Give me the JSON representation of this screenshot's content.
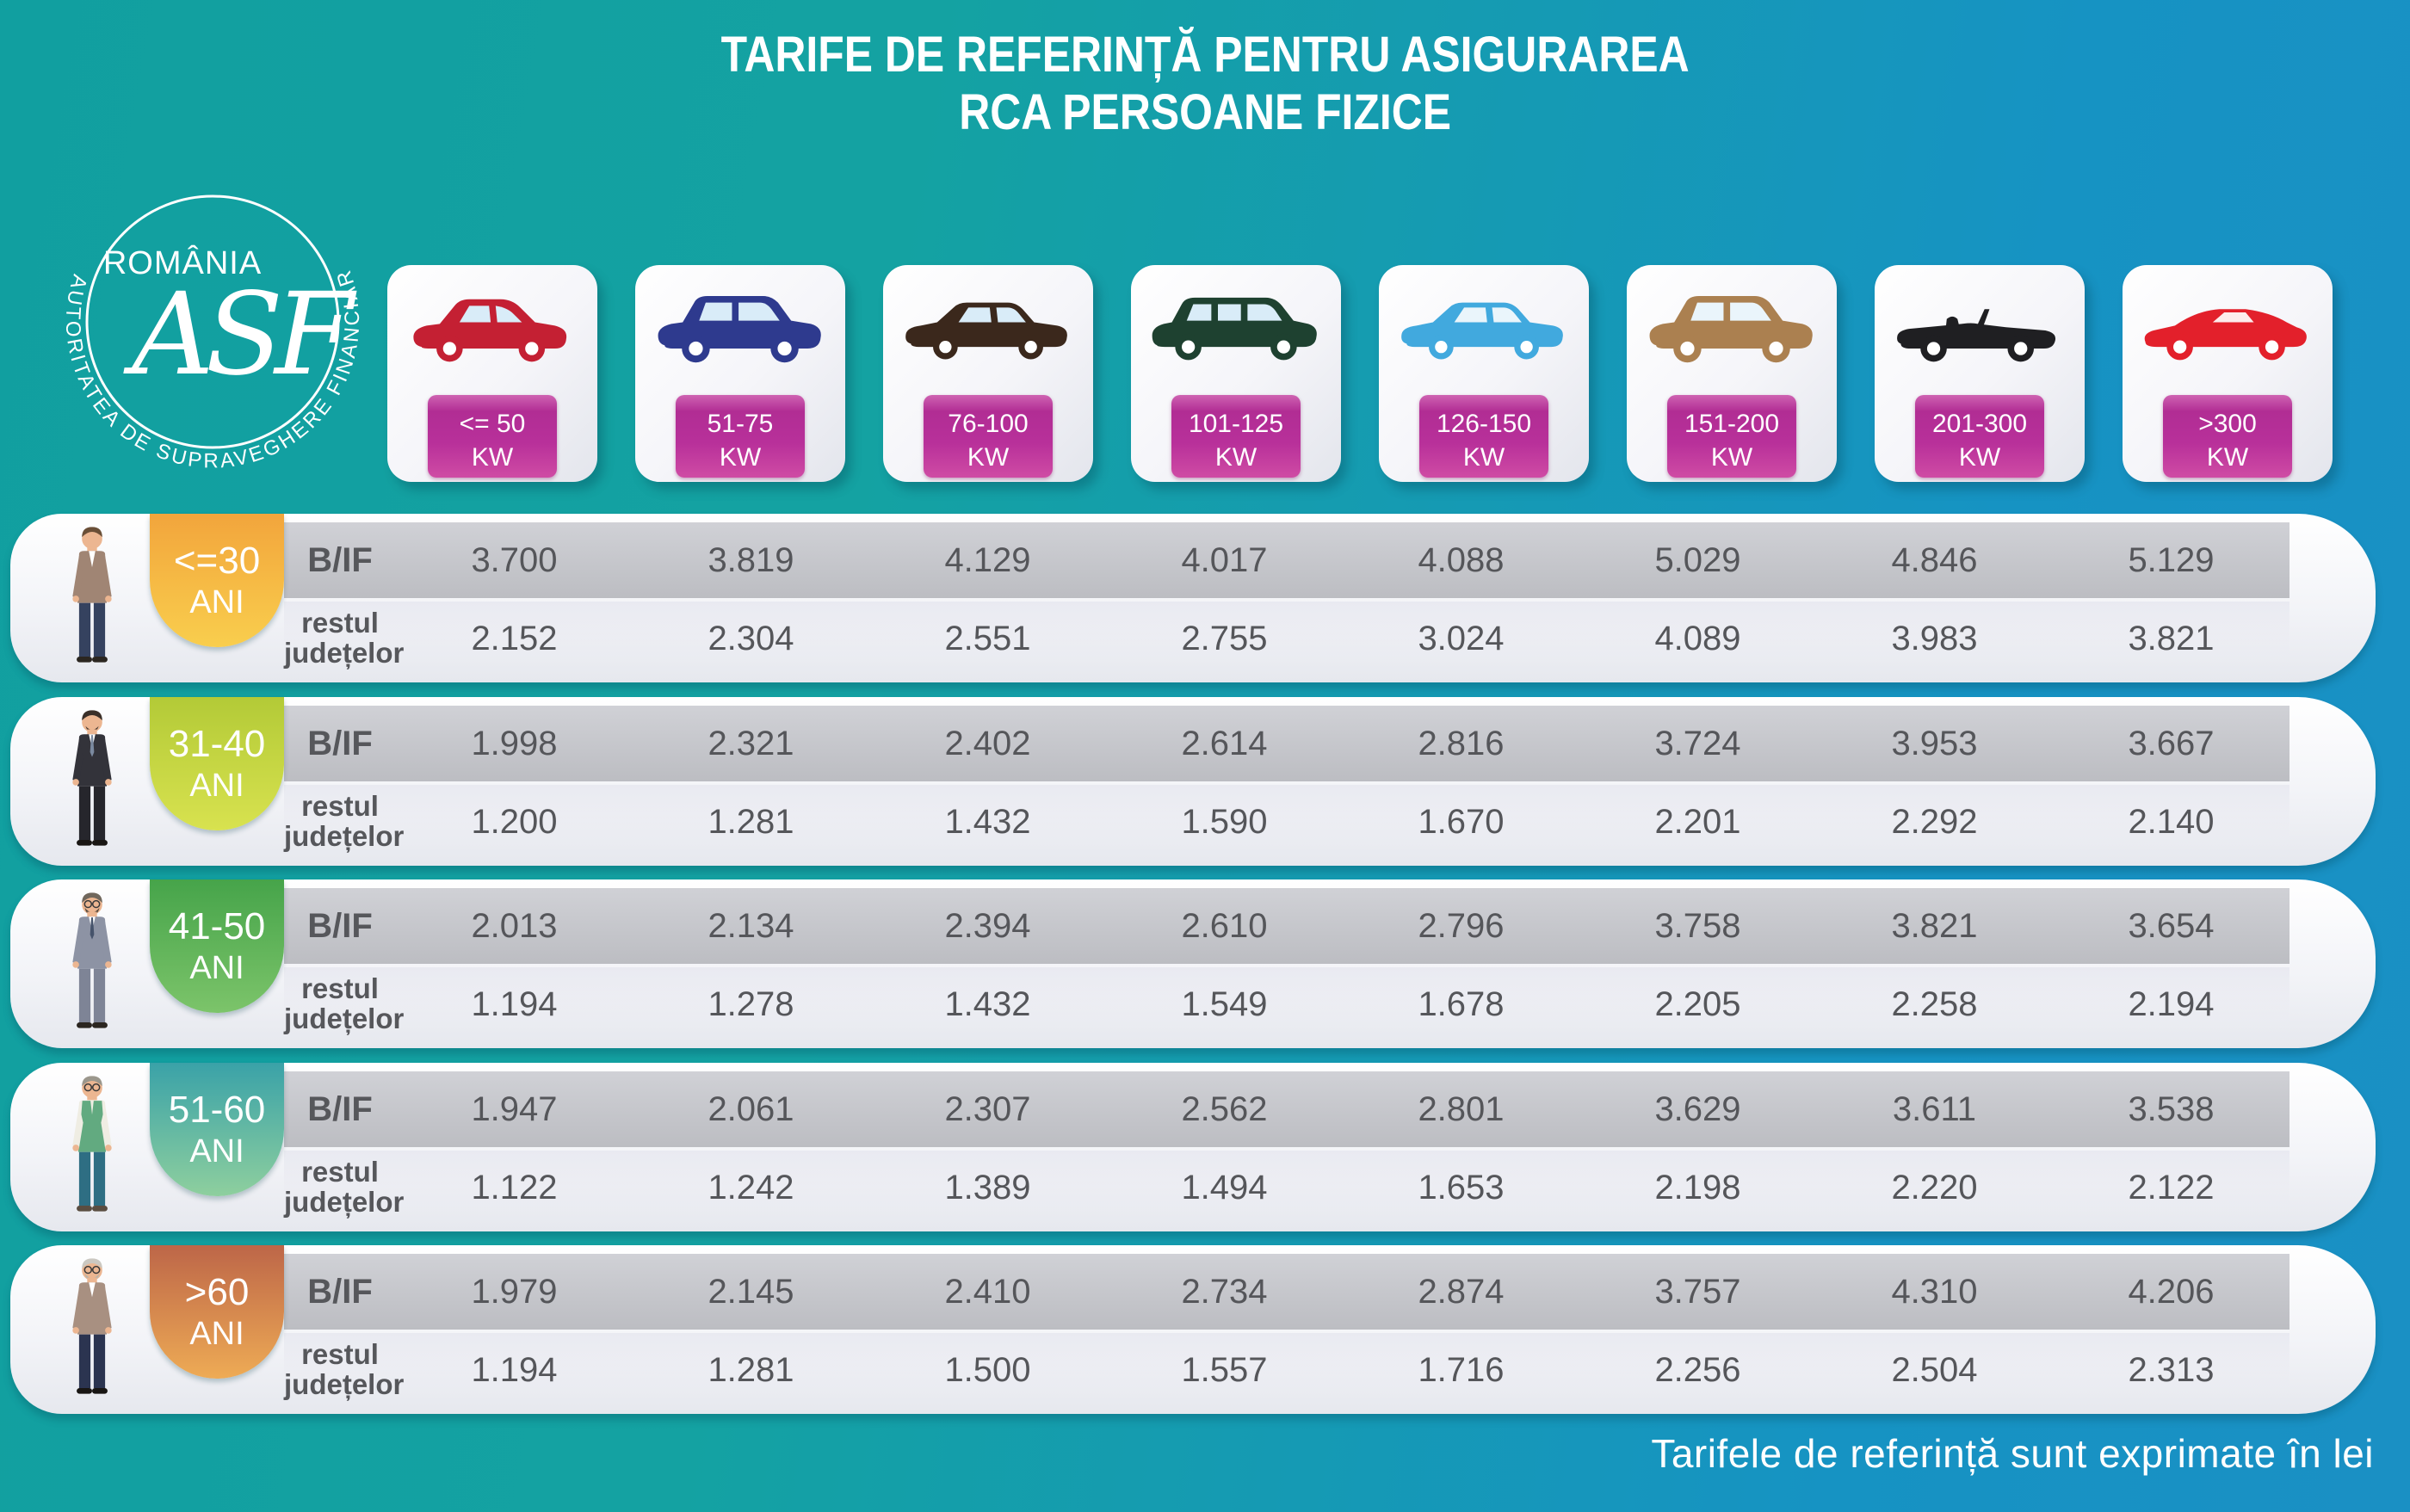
{
  "title": {
    "line1": "TARIFE DE REFERINȚĂ PENTRU ASIGURAREA",
    "line2": "RCA PERSOANE FIZICE"
  },
  "logo": {
    "country": "ROMÂNIA",
    "monogram": "ASF",
    "authority": "AUTORITATEA DE SUPRAVEGHERE FINANCIARĂ"
  },
  "row_labels": {
    "bif": "B/IF",
    "rest_line1": "restul",
    "rest_line2": "județelor"
  },
  "columns": [
    {
      "power": "<= 50",
      "unit": "KW",
      "car_icon": "hatchback-car-icon",
      "car_color": "#c42033"
    },
    {
      "power": "51-75",
      "unit": "KW",
      "car_icon": "crossover-car-icon",
      "car_color": "#2e3a8e"
    },
    {
      "power": "76-100",
      "unit": "KW",
      "car_icon": "sedan-car-icon",
      "car_color": "#3b281c"
    },
    {
      "power": "101-125",
      "unit": "KW",
      "car_icon": "minivan-car-icon",
      "car_color": "#1e4130"
    },
    {
      "power": "126-150",
      "unit": "KW",
      "car_icon": "sedan-car-icon",
      "car_color": "#41a9de"
    },
    {
      "power": "151-200",
      "unit": "KW",
      "car_icon": "suv-car-icon",
      "car_color": "#ab8050"
    },
    {
      "power": "201-300",
      "unit": "KW",
      "car_icon": "convertible-car-icon",
      "car_color": "#1f1f22"
    },
    {
      "power": ">300",
      "unit": "KW",
      "car_icon": "sports-car-icon",
      "car_color": "#e3202b"
    }
  ],
  "age_groups": [
    {
      "age": "<=30",
      "ani": "ANI",
      "person_icon": "young-man-icon",
      "badge_top": "#f2a53c",
      "badge_bottom": "#f9ce4d",
      "bif": [
        "3.700",
        "3.819",
        "4.129",
        "4.017",
        "4.088",
        "5.029",
        "4.846",
        "5.129"
      ],
      "rest": [
        "2.152",
        "2.304",
        "2.551",
        "2.755",
        "3.024",
        "4.089",
        "3.983",
        "3.821"
      ]
    },
    {
      "age": "31-40",
      "ani": "ANI",
      "person_icon": "adult-man-icon",
      "badge_top": "#b3ca37",
      "badge_bottom": "#d8e24f",
      "bif": [
        "1.998",
        "2.321",
        "2.402",
        "2.614",
        "2.816",
        "3.724",
        "3.953",
        "3.667"
      ],
      "rest": [
        "1.200",
        "1.281",
        "1.432",
        "1.590",
        "1.670",
        "2.201",
        "2.292",
        "2.140"
      ]
    },
    {
      "age": "41-50",
      "ani": "ANI",
      "person_icon": "middle-aged-man-icon",
      "badge_top": "#46a44a",
      "badge_bottom": "#7cc46a",
      "bif": [
        "2.013",
        "2.134",
        "2.394",
        "2.610",
        "2.796",
        "3.758",
        "3.821",
        "3.654"
      ],
      "rest": [
        "1.194",
        "1.278",
        "1.432",
        "1.549",
        "1.678",
        "2.205",
        "2.258",
        "2.194"
      ]
    },
    {
      "age": "51-60",
      "ani": "ANI",
      "person_icon": "senior-man-icon",
      "badge_top": "#3aa2a8",
      "badge_bottom": "#8ecf9e",
      "bif": [
        "1.947",
        "2.061",
        "2.307",
        "2.562",
        "2.801",
        "3.629",
        "3.611",
        "3.538"
      ],
      "rest": [
        "1.122",
        "1.242",
        "1.389",
        "1.494",
        "1.653",
        "2.198",
        "2.220",
        "2.122"
      ]
    },
    {
      "age": ">60",
      "ani": "ANI",
      "person_icon": "elderly-man-icon",
      "badge_top": "#bd6648",
      "badge_bottom": "#eeab55",
      "bif": [
        "1.979",
        "2.145",
        "2.410",
        "2.734",
        "2.874",
        "3.757",
        "4.310",
        "4.206"
      ],
      "rest": [
        "1.194",
        "1.281",
        "1.500",
        "1.557",
        "1.716",
        "2.256",
        "2.504",
        "2.313"
      ]
    }
  ],
  "footer": {
    "note": "Tarifele de referință sunt exprimate în lei"
  },
  "chart_data": {
    "type": "table",
    "title": "Tarife de referință pentru asigurarea RCA persoane fizice",
    "unit": "lei",
    "columns_kw": [
      "<= 50 KW",
      "51-75 KW",
      "76-100 KW",
      "101-125 KW",
      "126-150 KW",
      "151-200 KW",
      "201-300 KW",
      ">300 KW"
    ],
    "rows": [
      {
        "age": "<=30 ANI",
        "region": "B/IF",
        "values": [
          3700,
          3819,
          4129,
          4017,
          4088,
          5029,
          4846,
          5129
        ]
      },
      {
        "age": "<=30 ANI",
        "region": "restul județelor",
        "values": [
          2152,
          2304,
          2551,
          2755,
          3024,
          4089,
          3983,
          3821
        ]
      },
      {
        "age": "31-40 ANI",
        "region": "B/IF",
        "values": [
          1998,
          2321,
          2402,
          2614,
          2816,
          3724,
          3953,
          3667
        ]
      },
      {
        "age": "31-40 ANI",
        "region": "restul județelor",
        "values": [
          1200,
          1281,
          1432,
          1590,
          1670,
          2201,
          2292,
          2140
        ]
      },
      {
        "age": "41-50 ANI",
        "region": "B/IF",
        "values": [
          2013,
          2134,
          2394,
          2610,
          2796,
          3758,
          3821,
          3654
        ]
      },
      {
        "age": "41-50 ANI",
        "region": "restul județelor",
        "values": [
          1194,
          1278,
          1432,
          1549,
          1678,
          2205,
          2258,
          2194
        ]
      },
      {
        "age": "51-60 ANI",
        "region": "B/IF",
        "values": [
          1947,
          2061,
          2307,
          2562,
          2801,
          3629,
          3611,
          3538
        ]
      },
      {
        "age": "51-60 ANI",
        "region": "restul județelor",
        "values": [
          1122,
          1242,
          1389,
          1494,
          1653,
          2198,
          2220,
          2122
        ]
      },
      {
        "age": ">60 ANI",
        "region": "B/IF",
        "values": [
          1979,
          2145,
          2410,
          2734,
          2874,
          3757,
          4310,
          4206
        ]
      },
      {
        "age": ">60 ANI",
        "region": "restul județelor",
        "values": [
          1194,
          1281,
          1500,
          1557,
          1716,
          2256,
          2504,
          2313
        ]
      }
    ]
  }
}
